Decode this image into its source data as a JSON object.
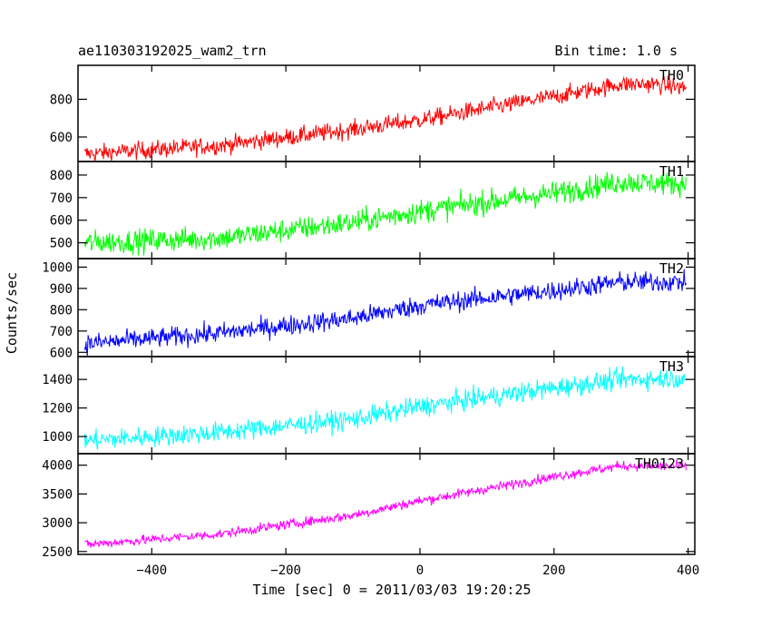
{
  "header": {
    "title": "ae110303192025_wam2_trn",
    "bin_time": "Bin time: 1.0 s"
  },
  "chart_data": {
    "type": "line",
    "title": "ae110303192025_wam2_trn",
    "xlabel": "Time [sec] 0 = 2011/03/03 19:20:25",
    "ylabel": "Counts/sec",
    "xlim": [
      -510,
      410
    ],
    "x_ticks": [
      -400,
      -200,
      0,
      200,
      400
    ],
    "x_tick_labels": [
      "−400",
      "−200",
      "0",
      "200",
      "400"
    ],
    "x_sampling": {
      "start": -500,
      "end": 397,
      "step": 1
    },
    "series": [
      {
        "name": "TH0",
        "color": "#ff0000",
        "ylim": [
          470,
          980
        ],
        "y_ticks": [
          600,
          800
        ],
        "anchors_x": [
          -500,
          -300,
          -100,
          0,
          200,
          300,
          350,
          397
        ],
        "anchors_y": [
          510,
          555,
          640,
          690,
          815,
          880,
          880,
          860
        ],
        "noise": 25
      },
      {
        "name": "TH1",
        "color": "#00ff00",
        "ylim": [
          430,
          860
        ],
        "y_ticks": [
          500,
          600,
          700,
          800
        ],
        "anchors_x": [
          -500,
          -300,
          -100,
          0,
          200,
          300,
          397
        ],
        "anchors_y": [
          500,
          520,
          590,
          640,
          720,
          770,
          760
        ],
        "noise": 28
      },
      {
        "name": "TH2",
        "color": "#0000ff",
        "ylim": [
          580,
          1040
        ],
        "y_ticks": [
          600,
          700,
          800,
          900,
          1000
        ],
        "anchors_x": [
          -500,
          -300,
          -100,
          0,
          200,
          300,
          397
        ],
        "anchors_y": [
          640,
          690,
          760,
          820,
          890,
          930,
          930
        ],
        "noise": 25
      },
      {
        "name": "TH3",
        "color": "#00ffff",
        "ylim": [
          880,
          1560
        ],
        "y_ticks": [
          1000,
          1200,
          1400
        ],
        "anchors_x": [
          -500,
          -300,
          -100,
          0,
          200,
          300,
          397
        ],
        "anchors_y": [
          970,
          1030,
          1120,
          1210,
          1340,
          1400,
          1410
        ],
        "noise": 38
      },
      {
        "name": "TH0123",
        "color": "#ff00ff",
        "ylim": [
          2450,
          4200
        ],
        "y_ticks": [
          2500,
          3000,
          3500,
          4000
        ],
        "anchors_x": [
          -500,
          -300,
          -100,
          0,
          200,
          300,
          397
        ],
        "anchors_y": [
          2620,
          2800,
          3130,
          3380,
          3800,
          3990,
          3980
        ],
        "noise": 45
      }
    ]
  }
}
